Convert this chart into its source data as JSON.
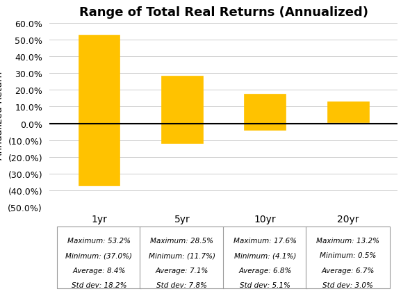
{
  "title": "Range of Total Real Returns (Annualized)",
  "categories": [
    "1yr",
    "5yr",
    "10yr",
    "20yr"
  ],
  "maximums": [
    53.2,
    28.5,
    17.6,
    13.2
  ],
  "minimums": [
    -37.0,
    -11.7,
    -4.1,
    0.5
  ],
  "bar_color": "#FFC200",
  "ylim_min": -50.0,
  "ylim_max": 60.0,
  "yticks": [
    60.0,
    50.0,
    40.0,
    30.0,
    20.0,
    10.0,
    0.0,
    -10.0,
    -20.0,
    -30.0,
    -40.0,
    -50.0
  ],
  "ytick_labels": [
    "60.0%",
    "50.0%",
    "40.0%",
    "30.0%",
    "20.0%",
    "10.0%",
    "0.0%",
    "(10.0%)",
    "(20.0%)",
    "(30.0%)",
    "(40.0%)",
    "(50.0%)"
  ],
  "background_color": "#FFFFFF",
  "grid_color": "#CCCCCC",
  "title_fontsize": 13,
  "axis_label_fontsize": 10,
  "tick_fontsize": 9,
  "annotation_fontsize": 7.5,
  "box_labels": [
    [
      "Maximum: 53.2%",
      "Minimum: (37.0%)",
      "Average: 8.4%",
      "Std dev: 18.2%"
    ],
    [
      "Maximum: 28.5%",
      "Minimum: (11.7%)",
      "Average: 7.1%",
      "Std dev: 7.8%"
    ],
    [
      "Maximum: 17.6%",
      "Minimum: (4.1%)",
      "Average: 6.8%",
      "Std dev: 5.1%"
    ],
    [
      "Maximum: 13.2%",
      "Minimum: 0.5%",
      "Average: 6.7%",
      "Std dev: 3.0%"
    ]
  ]
}
